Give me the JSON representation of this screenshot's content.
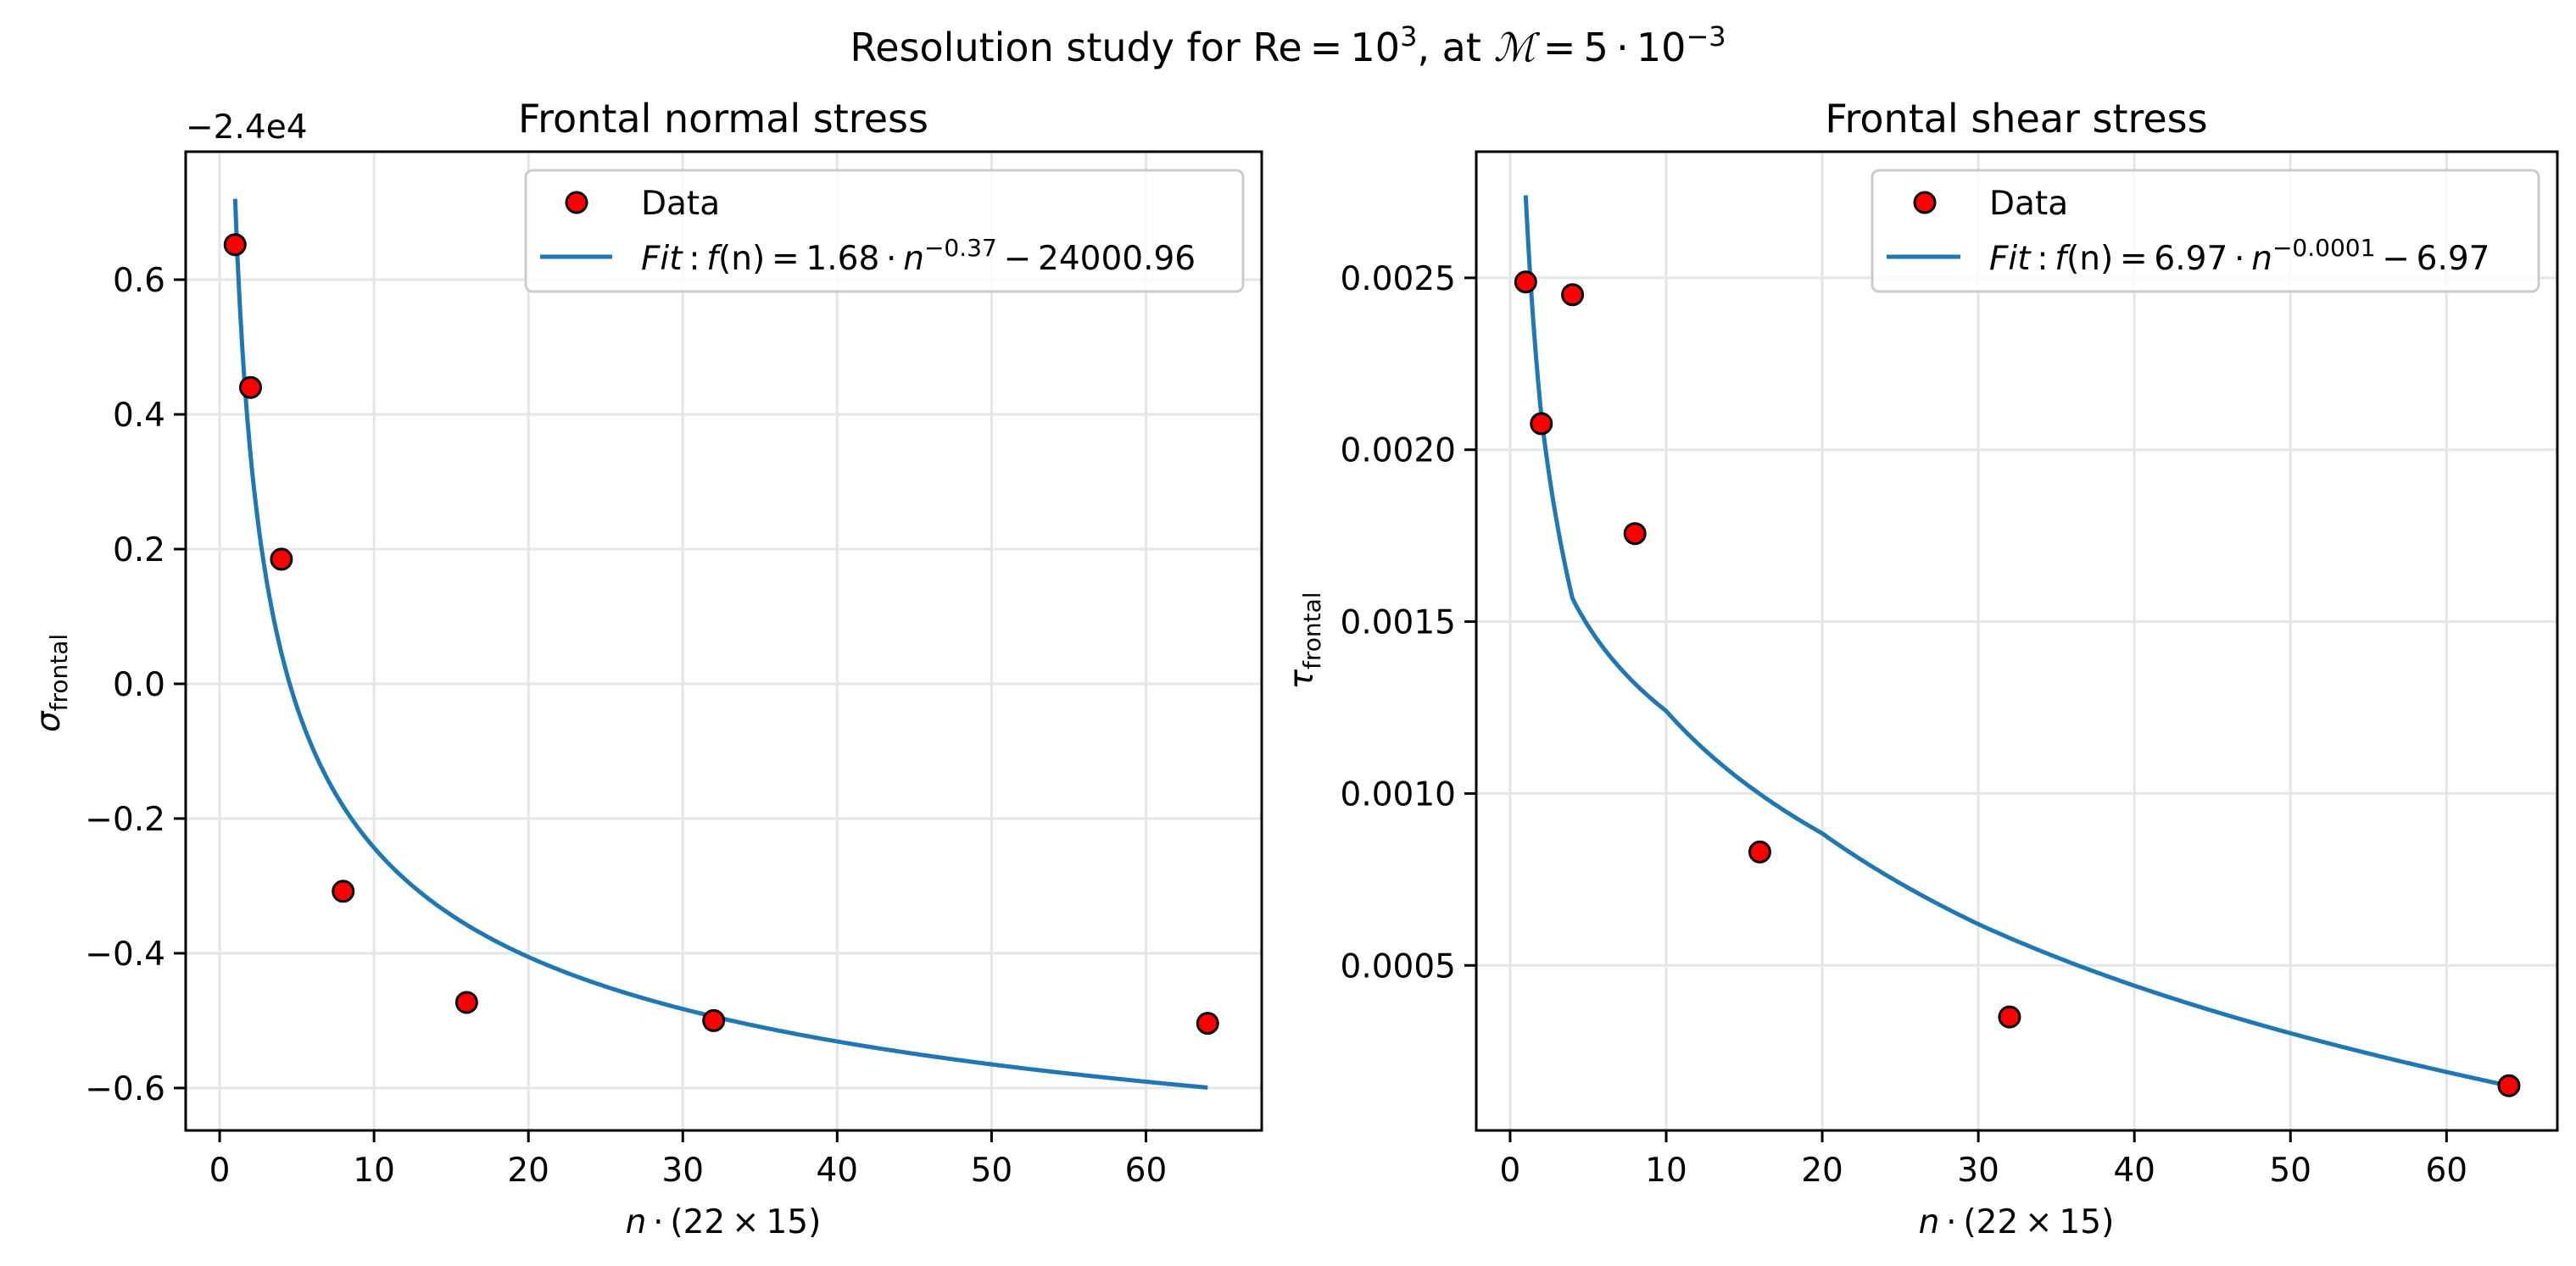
{
  "figure": {
    "suptitle": {
      "prefix": "Resolution study for Re = 10",
      "sup1": "3",
      "middle": ", at ",
      "symbol": "ℳ",
      "suffix": " = 5 · 10",
      "sup2": "−3"
    }
  },
  "colors": {
    "data_fill": "#ff0000",
    "data_edge": "#000000",
    "fit_line": "#1f77b4",
    "grid": "#e5e5e5",
    "legend_edge": "#cccccc"
  },
  "chart_data": [
    {
      "type": "scatter",
      "title": "Frontal normal stress",
      "xlabel": {
        "var": "n",
        "rest": " · (22 × 15)"
      },
      "ylabel": {
        "symbol": "σ",
        "sub": "frontal"
      },
      "y_offset_text": "−2.4e4",
      "y_offset_value": -24000,
      "xlim": [
        -2.2,
        67.5
      ],
      "ylim": [
        -0.663,
        0.79
      ],
      "xticks": [
        0,
        10,
        20,
        30,
        40,
        50,
        60
      ],
      "xtick_labels": [
        "0",
        "10",
        "20",
        "30",
        "40",
        "50",
        "60"
      ],
      "yticks": [
        -0.6,
        -0.4,
        -0.2,
        0.0,
        0.2,
        0.4,
        0.6
      ],
      "ytick_labels": [
        "−0.6",
        "−0.4",
        "−0.2",
        "0.0",
        "0.2",
        "0.4",
        "0.6"
      ],
      "grid": true,
      "legend_position": "top-right",
      "series": [
        {
          "name": "Data",
          "kind": "scatter",
          "x": [
            1,
            2,
            4,
            8,
            16,
            32,
            64
          ],
          "y": [
            0.652,
            0.44,
            0.185,
            -0.308,
            -0.473,
            -0.5,
            -0.504
          ]
        },
        {
          "name": "Fit",
          "kind": "line",
          "legend_label": {
            "fit": "Fit",
            "colon": " : ",
            "f": "f",
            "arg": "(n)",
            "eq": " = 1.68 · ",
            "n": "n",
            "exp": "−0.37",
            "tail": " − 24000.96"
          },
          "model": "power",
          "params": {
            "a": 1.68,
            "b": -0.37,
            "c": -0.96
          },
          "x_range": [
            1,
            64
          ]
        }
      ]
    },
    {
      "type": "scatter",
      "title": "Frontal shear stress",
      "xlabel": {
        "var": "n",
        "rest": " · (22 × 15)"
      },
      "ylabel": {
        "symbol": "τ",
        "sub": "frontal"
      },
      "xlim": [
        -2.17,
        67.1
      ],
      "ylim": [
        2e-05,
        0.002867
      ],
      "xticks": [
        0,
        10,
        20,
        30,
        40,
        50,
        60
      ],
      "xtick_labels": [
        "0",
        "10",
        "20",
        "30",
        "40",
        "50",
        "60"
      ],
      "yticks": [
        0.0005,
        0.001,
        0.0015,
        0.002,
        0.0025
      ],
      "ytick_labels": [
        "0.0005",
        "0.0010",
        "0.0015",
        "0.0020",
        "0.0025"
      ],
      "grid": true,
      "legend_position": "top-right",
      "series": [
        {
          "name": "Data",
          "kind": "scatter",
          "x": [
            1,
            2,
            4,
            8,
            16,
            32,
            64
          ],
          "y": [
            0.002488,
            0.002076,
            0.002451,
            0.001756,
            0.00083,
            0.00035,
            0.00015
          ]
        },
        {
          "name": "Fit",
          "kind": "line",
          "legend_label": {
            "fit": "Fit",
            "colon": " : ",
            "f": "f",
            "arg": "(n)",
            "eq": " = 6.97 · ",
            "n": "n",
            "exp": "−0.0001",
            "tail": " − 6.97"
          },
          "model": "sampled",
          "x": [
            1,
            2,
            4,
            10,
            20,
            30,
            40,
            64
          ],
          "y": [
            0.00274,
            0.0021,
            0.001567,
            0.00124,
            0.000884,
            0.00062,
            0.000441,
            0.00015
          ]
        }
      ]
    }
  ]
}
